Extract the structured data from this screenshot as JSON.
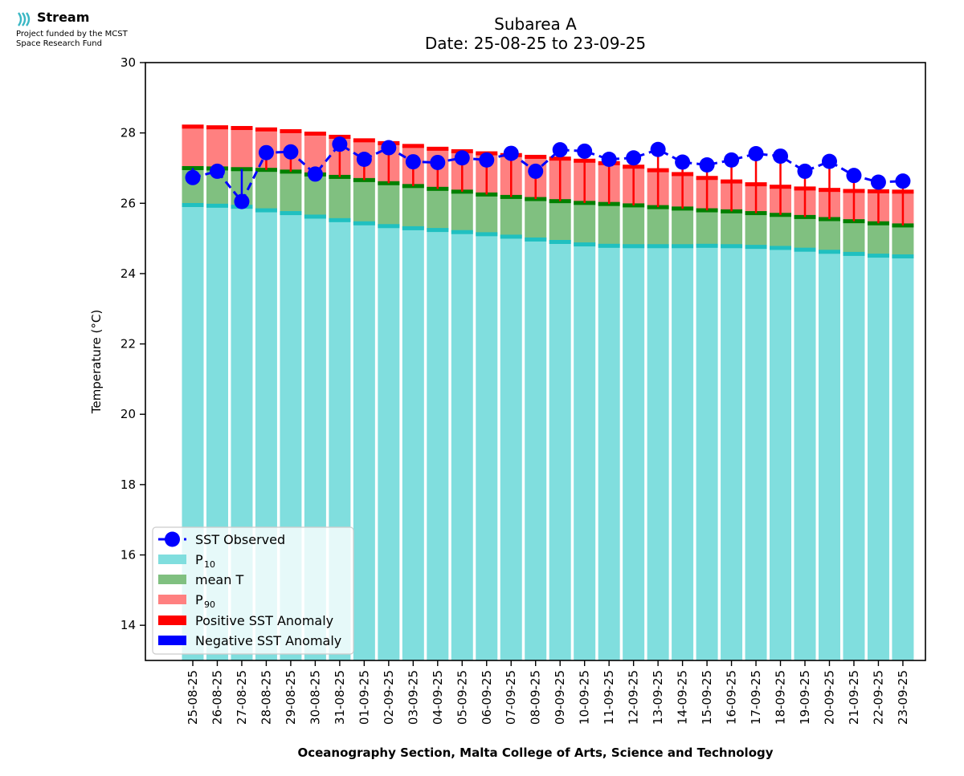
{
  "logo": {
    "name": "Stream",
    "lines": [
      "Project funded by the MCST",
      "Space Research Fund"
    ]
  },
  "chart_data": {
    "type": "bar",
    "title": [
      "Subarea A",
      "Date: 25-08-25 to 23-09-25"
    ],
    "ylabel": "Temperature (°C)",
    "xlabel": "Oceanography Section, Malta College of Arts, Science and Technology",
    "ylim": [
      13,
      30
    ],
    "yticks": [
      14,
      16,
      18,
      20,
      22,
      24,
      26,
      28,
      30
    ],
    "grid": false,
    "legend_position": "lower-left",
    "categories": [
      "25-08-25",
      "26-08-25",
      "27-08-25",
      "28-08-25",
      "29-08-25",
      "30-08-25",
      "31-08-25",
      "01-09-25",
      "02-09-25",
      "03-09-25",
      "04-09-25",
      "05-09-25",
      "06-09-25",
      "07-09-25",
      "08-09-25",
      "09-09-25",
      "10-09-25",
      "11-09-25",
      "12-09-25",
      "13-09-25",
      "14-09-25",
      "15-09-25",
      "16-09-25",
      "17-09-25",
      "18-09-25",
      "19-09-25",
      "20-09-25",
      "21-09-25",
      "22-09-25",
      "23-09-25"
    ],
    "series": [
      {
        "name": "P10",
        "label_main": "P",
        "label_sub": "10",
        "color": "#80dede",
        "values": [
          25.95,
          25.93,
          25.9,
          25.8,
          25.72,
          25.62,
          25.52,
          25.43,
          25.35,
          25.29,
          25.24,
          25.18,
          25.12,
          25.05,
          24.97,
          24.9,
          24.83,
          24.79,
          24.78,
          24.78,
          24.78,
          24.79,
          24.78,
          24.76,
          24.73,
          24.68,
          24.62,
          24.56,
          24.51,
          24.49
        ]
      },
      {
        "name": "mean T",
        "color": "#80c080",
        "values": [
          27.0,
          26.99,
          26.97,
          26.95,
          26.9,
          26.82,
          26.75,
          26.66,
          26.57,
          26.49,
          26.41,
          26.33,
          26.25,
          26.18,
          26.12,
          26.06,
          26.01,
          25.98,
          25.94,
          25.89,
          25.85,
          25.8,
          25.77,
          25.72,
          25.67,
          25.61,
          25.55,
          25.49,
          25.43,
          25.37
        ]
      },
      {
        "name": "P90",
        "label_main": "P",
        "label_sub": "90",
        "color": "#ff8080",
        "values": [
          28.18,
          28.16,
          28.14,
          28.1,
          28.05,
          27.98,
          27.89,
          27.79,
          27.71,
          27.63,
          27.55,
          27.48,
          27.42,
          27.37,
          27.32,
          27.27,
          27.21,
          27.14,
          27.04,
          26.94,
          26.83,
          26.72,
          26.62,
          26.54,
          26.47,
          26.42,
          26.38,
          26.35,
          26.34,
          26.33
        ]
      },
      {
        "name": "SST Observed",
        "color": "#0000ff",
        "values": [
          26.73,
          26.91,
          26.05,
          27.44,
          27.46,
          26.83,
          27.68,
          27.25,
          27.58,
          27.18,
          27.16,
          27.29,
          27.23,
          27.42,
          26.91,
          27.52,
          27.48,
          27.25,
          27.29,
          27.53,
          27.17,
          27.09,
          27.23,
          27.41,
          27.34,
          26.91,
          27.19,
          26.79,
          26.6,
          26.63
        ]
      }
    ],
    "legend": [
      {
        "key": "sst",
        "text": "SST Observed"
      },
      {
        "key": "p10",
        "text_main": "P",
        "text_sub": "10"
      },
      {
        "key": "mean",
        "text": "mean T"
      },
      {
        "key": "p90",
        "text_main": "P",
        "text_sub": "90"
      },
      {
        "key": "pos",
        "text": "Positive SST Anomaly"
      },
      {
        "key": "neg",
        "text": "Negative SST Anomaly"
      }
    ],
    "colors": {
      "p10_edge": "#20c0c0",
      "mean_edge": "#008000",
      "p90_edge": "#ff0000",
      "positive_anomaly": "#ff0000",
      "negative_anomaly": "#0000ff",
      "sst_line": "#0000ff"
    }
  }
}
